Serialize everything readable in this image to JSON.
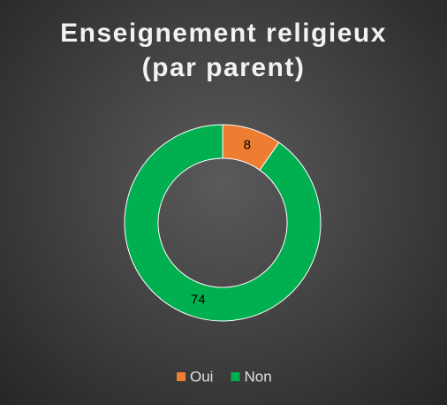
{
  "chart_data": {
    "type": "donut",
    "title": "Enseignement religieux (par parent)",
    "categories": [
      "Oui",
      "Non"
    ],
    "values": [
      8,
      74
    ],
    "colors": [
      "#ed7d31",
      "#00b050"
    ],
    "legend": "bottom"
  }
}
